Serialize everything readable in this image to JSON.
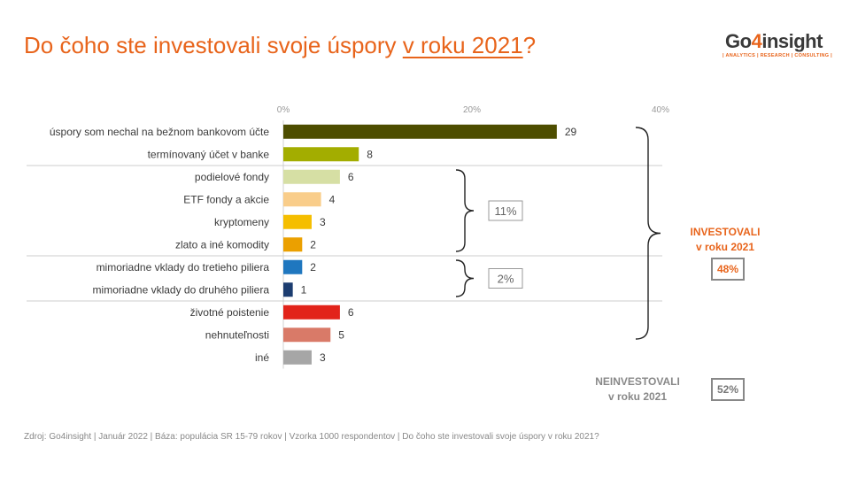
{
  "title": {
    "main": "Do čoho ste investovali svoje úspory ",
    "highlight": "v roku 2021",
    "end": "?"
  },
  "logo": {
    "brand_a": "Go",
    "brand_four": "4",
    "brand_b": "insight",
    "tagline": "| ANALYTICS | RESEARCH | CONSULTING |"
  },
  "chart_data": {
    "type": "bar",
    "orientation": "horizontal",
    "xlim": [
      0,
      40
    ],
    "x_ticks": [
      "0%",
      "20%",
      "40%"
    ],
    "categories": [
      "úspory som nechal na bežnom bankovom účte",
      "termínovaný účet v banke",
      "podielové fondy",
      "ETF fondy a akcie",
      "kryptomeny",
      "zlato a iné komodity",
      "mimoriadne vklady do tretieho piliera",
      "mimoriadne vklady do druhého piliera",
      "životné poistenie",
      "nehnuteľnosti",
      "iné"
    ],
    "values": [
      29,
      8,
      6,
      4,
      3,
      2,
      2,
      1,
      6,
      5,
      3
    ],
    "colors": [
      "#4D4D00",
      "#A3AD00",
      "#D6DFA4",
      "#F9CD8A",
      "#F5BE00",
      "#EBA000",
      "#1F77BF",
      "#1C3D70",
      "#E2231A",
      "#D97A68",
      "#A6A6A6"
    ],
    "group_brackets": [
      {
        "from": 2,
        "to": 5,
        "label": "11%"
      },
      {
        "from": 6,
        "to": 7,
        "label": "2%"
      }
    ],
    "big_bracket": {
      "from": 0,
      "to": 9
    },
    "grid": false
  },
  "side": {
    "investovali_line1": "INVESTOVALI",
    "investovali_line2": "v roku 2021",
    "investovali_pct": "48%",
    "neinvestovali_line1": "NEINVESTOVALI",
    "neinvestovali_line2": "v roku 2021",
    "neinvestovali_pct": "52%",
    "color_orange": "#E8641B",
    "color_gray": "#888888"
  },
  "footer": "Zdroj: Go4insight | Január 2022 | Báza: populácia SR 15-79 rokov | Vzorka 1000 respondentov | Do čoho ste investovali svoje úspory v roku 2021?"
}
